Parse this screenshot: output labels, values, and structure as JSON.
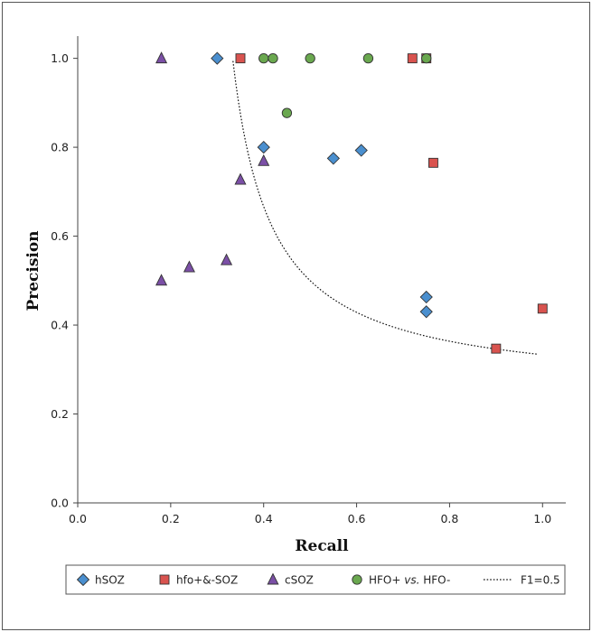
{
  "chart_data": {
    "type": "scatter",
    "title": "",
    "xlabel": "Recall",
    "ylabel": "Precision",
    "xlim": [
      0.0,
      1.05
    ],
    "ylim": [
      0.0,
      1.05
    ],
    "xticks": [
      "0.0",
      "0.2",
      "0.4",
      "0.6",
      "0.8",
      "1.0"
    ],
    "yticks": [
      "0.0",
      "0.2",
      "0.4",
      "0.6",
      "0.8",
      "1.0"
    ],
    "grid": false,
    "legend_position": "bottom",
    "series": [
      {
        "name": "hSOZ",
        "marker": "diamond",
        "color": "#4a8fcf",
        "points": [
          [
            0.3,
            1.0
          ],
          [
            0.4,
            0.8
          ],
          [
            0.55,
            0.775
          ],
          [
            0.61,
            0.793
          ],
          [
            0.75,
            0.463
          ],
          [
            0.75,
            0.43
          ]
        ]
      },
      {
        "name": "hfo+&-SOZ",
        "marker": "square",
        "color": "#d9534f",
        "points": [
          [
            0.35,
            1.0
          ],
          [
            0.72,
            1.0
          ],
          [
            0.75,
            1.0
          ],
          [
            0.765,
            0.765
          ],
          [
            0.9,
            0.347
          ],
          [
            1.0,
            0.437
          ]
        ]
      },
      {
        "name": "cSOZ",
        "marker": "triangle",
        "color": "#7b4fa6",
        "points": [
          [
            0.18,
            1.0
          ],
          [
            0.18,
            0.5
          ],
          [
            0.24,
            0.53
          ],
          [
            0.32,
            0.546
          ],
          [
            0.35,
            0.727
          ],
          [
            0.4,
            0.769
          ]
        ]
      },
      {
        "name": "HFO+ vs. HFO-",
        "name_parts": [
          "HFO+ ",
          "vs.",
          " HFO-"
        ],
        "marker": "circle",
        "color": "#6aa84f",
        "points": [
          [
            0.4,
            1.0
          ],
          [
            0.42,
            1.0
          ],
          [
            0.45,
            0.877
          ],
          [
            0.5,
            1.0
          ],
          [
            0.625,
            1.0
          ],
          [
            0.75,
            1.0
          ]
        ]
      }
    ],
    "curve": {
      "name": "F1=0.5",
      "style": "dotted",
      "f1": 0.5,
      "x_start": 0.334,
      "x_end": 0.99
    }
  }
}
